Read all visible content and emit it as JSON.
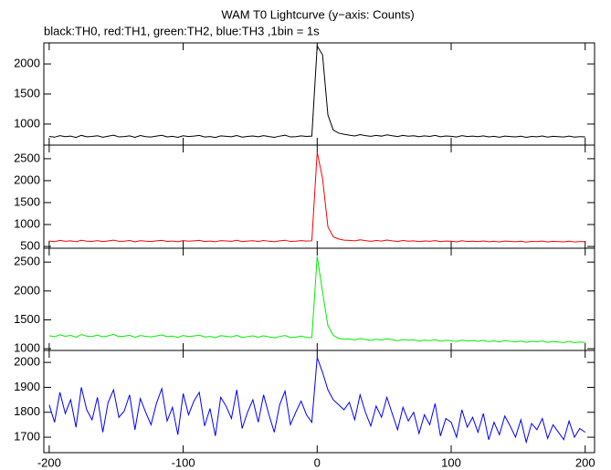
{
  "title": "WAM T0 Lightcurve (y−axis: Counts)",
  "subtitle": "black:TH0, red:TH1, green:TH2, blue:TH3 ,1bin = 1s",
  "chart_data": [
    {
      "type": "line",
      "xlim": [
        -204,
        207
      ],
      "xticks": [
        -200,
        -100,
        0,
        100,
        200
      ],
      "ylim": [
        650,
        2350
      ],
      "yticks": [
        1000,
        1500,
        2000
      ],
      "x": [
        -200,
        -196,
        -192,
        -188,
        -184,
        -180,
        -176,
        -172,
        -168,
        -164,
        -160,
        -156,
        -152,
        -148,
        -144,
        -140,
        -136,
        -132,
        -128,
        -124,
        -120,
        -116,
        -112,
        -108,
        -104,
        -100,
        -96,
        -92,
        -88,
        -84,
        -80,
        -76,
        -72,
        -68,
        -64,
        -60,
        -56,
        -52,
        -48,
        -44,
        -40,
        -36,
        -32,
        -28,
        -24,
        -20,
        -16,
        -12,
        -8,
        -4,
        0,
        4,
        8,
        12,
        16,
        20,
        24,
        28,
        32,
        36,
        40,
        44,
        48,
        52,
        56,
        60,
        64,
        68,
        72,
        76,
        80,
        84,
        88,
        92,
        96,
        100,
        104,
        108,
        112,
        116,
        120,
        124,
        128,
        132,
        136,
        140,
        144,
        148,
        152,
        156,
        160,
        164,
        168,
        172,
        176,
        180,
        184,
        188,
        192,
        196,
        200
      ],
      "series": [
        {
          "color": "#000000",
          "values": [
            795,
            782,
            808,
            790,
            799,
            777,
            812,
            788,
            794,
            805,
            781,
            798,
            815,
            786,
            792,
            803,
            779,
            809,
            791,
            784,
            800,
            813,
            787,
            796,
            780,
            806,
            792,
            799,
            811,
            785,
            793,
            778,
            804,
            797,
            789,
            810,
            783,
            795,
            801,
            788,
            807,
            792,
            780,
            799,
            814,
            786,
            791,
            803,
            795,
            800,
            2300,
            2150,
            1150,
            900,
            850,
            830,
            815,
            802,
            825,
            808,
            796,
            812,
            799,
            820,
            805,
            793,
            811,
            798,
            806,
            790,
            803,
            795,
            812,
            788,
            801,
            797,
            785,
            808,
            792,
            799,
            790,
            804,
            787,
            796,
            781,
            800,
            793,
            786,
            798,
            779,
            794,
            788,
            801,
            783,
            796,
            790,
            785,
            799,
            782,
            791,
            787
          ]
        }
      ]
    },
    {
      "type": "line",
      "xlim": [
        -204,
        207
      ],
      "xticks": [
        -200,
        -100,
        0,
        100,
        200
      ],
      "ylim": [
        460,
        2810
      ],
      "yticks": [
        500,
        1000,
        1500,
        2000,
        2500
      ],
      "x": [
        -200,
        -196,
        -192,
        -188,
        -184,
        -180,
        -176,
        -172,
        -168,
        -164,
        -160,
        -156,
        -152,
        -148,
        -144,
        -140,
        -136,
        -132,
        -128,
        -124,
        -120,
        -116,
        -112,
        -108,
        -104,
        -100,
        -96,
        -92,
        -88,
        -84,
        -80,
        -76,
        -72,
        -68,
        -64,
        -60,
        -56,
        -52,
        -48,
        -44,
        -40,
        -36,
        -32,
        -28,
        -24,
        -20,
        -16,
        -12,
        -8,
        -4,
        0,
        4,
        8,
        12,
        16,
        20,
        24,
        28,
        32,
        36,
        40,
        44,
        48,
        52,
        56,
        60,
        64,
        68,
        72,
        76,
        80,
        84,
        88,
        92,
        96,
        100,
        104,
        108,
        112,
        116,
        120,
        124,
        128,
        132,
        136,
        140,
        144,
        148,
        152,
        156,
        160,
        164,
        168,
        172,
        176,
        180,
        184,
        188,
        192,
        196,
        200
      ],
      "series": [
        {
          "color": "#ff0000",
          "values": [
            625,
            612,
            638,
            619,
            630,
            608,
            642,
            621,
            615,
            633,
            610,
            627,
            645,
            618,
            622,
            636,
            605,
            631,
            620,
            613,
            628,
            640,
            617,
            625,
            609,
            634,
            621,
            629,
            639,
            614,
            623,
            607,
            635,
            626,
            618,
            641,
            611,
            624,
            632,
            616,
            637,
            620,
            609,
            628,
            643,
            615,
            622,
            634,
            624,
            630,
            2650,
            2050,
            950,
            720,
            670,
            645,
            640,
            628,
            652,
            633,
            619,
            637,
            624,
            648,
            630,
            615,
            636,
            621,
            629,
            611,
            627,
            618,
            635,
            610,
            624,
            620,
            606,
            631,
            614,
            622,
            612,
            627,
            608,
            619,
            603,
            623,
            615,
            607,
            621,
            600,
            617,
            610,
            624,
            604,
            618,
            612,
            606,
            621,
            603,
            613,
            609
          ]
        }
      ]
    },
    {
      "type": "line",
      "xlim": [
        -204,
        207
      ],
      "xticks": [
        -200,
        -100,
        0,
        100,
        200
      ],
      "ylim": [
        970,
        2740
      ],
      "yticks": [
        1000,
        1500,
        2000,
        2500
      ],
      "x": [
        -200,
        -196,
        -192,
        -188,
        -184,
        -180,
        -176,
        -172,
        -168,
        -164,
        -160,
        -156,
        -152,
        -148,
        -144,
        -140,
        -136,
        -132,
        -128,
        -124,
        -120,
        -116,
        -112,
        -108,
        -104,
        -100,
        -96,
        -92,
        -88,
        -84,
        -80,
        -76,
        -72,
        -68,
        -64,
        -60,
        -56,
        -52,
        -48,
        -44,
        -40,
        -36,
        -32,
        -28,
        -24,
        -20,
        -16,
        -12,
        -8,
        -4,
        0,
        4,
        8,
        12,
        16,
        20,
        24,
        28,
        32,
        36,
        40,
        44,
        48,
        52,
        56,
        60,
        64,
        68,
        72,
        76,
        80,
        84,
        88,
        92,
        96,
        100,
        104,
        108,
        112,
        116,
        120,
        124,
        128,
        132,
        136,
        140,
        144,
        148,
        152,
        156,
        160,
        164,
        168,
        172,
        176,
        180,
        184,
        188,
        192,
        196,
        200
      ],
      "series": [
        {
          "color": "#00ee00",
          "values": [
            1225,
            1208,
            1240,
            1215,
            1230,
            1200,
            1245,
            1218,
            1212,
            1236,
            1205,
            1222,
            1248,
            1210,
            1216,
            1232,
            1198,
            1228,
            1214,
            1206,
            1221,
            1238,
            1209,
            1218,
            1196,
            1229,
            1211,
            1220,
            1234,
            1203,
            1213,
            1192,
            1226,
            1215,
            1204,
            1231,
            1195,
            1210,
            1222,
            1200,
            1225,
            1205,
            1190,
            1212,
            1228,
            1193,
            1202,
            1218,
            1198,
            1190,
            2600,
            1980,
            1400,
            1230,
            1180,
            1165,
            1170,
            1152,
            1178,
            1160,
            1145,
            1163,
            1150,
            1172,
            1155,
            1138,
            1160,
            1146,
            1153,
            1132,
            1150,
            1140,
            1158,
            1130,
            1145,
            1139,
            1124,
            1150,
            1132,
            1141,
            1128,
            1146,
            1122,
            1135,
            1117,
            1140,
            1129,
            1118,
            1134,
            1110,
            1128,
            1120,
            1133,
            1108,
            1125,
            1116,
            1106,
            1128,
            1104,
            1115,
            1110
          ]
        }
      ]
    },
    {
      "type": "line",
      "xlim": [
        -204,
        207
      ],
      "xticks": [
        -200,
        -100,
        0,
        100,
        200
      ],
      "ylim": [
        1638,
        2048
      ],
      "yticks": [
        1700,
        1800,
        1900,
        2000
      ],
      "x": [
        -200,
        -196,
        -192,
        -188,
        -184,
        -180,
        -176,
        -172,
        -168,
        -164,
        -160,
        -156,
        -152,
        -148,
        -144,
        -140,
        -136,
        -132,
        -128,
        -124,
        -120,
        -116,
        -112,
        -108,
        -104,
        -100,
        -96,
        -92,
        -88,
        -84,
        -80,
        -76,
        -72,
        -68,
        -64,
        -60,
        -56,
        -52,
        -48,
        -44,
        -40,
        -36,
        -32,
        -28,
        -24,
        -20,
        -16,
        -12,
        -8,
        -4,
        0,
        4,
        8,
        12,
        16,
        20,
        24,
        28,
        32,
        36,
        40,
        44,
        48,
        52,
        56,
        60,
        64,
        68,
        72,
        76,
        80,
        84,
        88,
        92,
        96,
        100,
        104,
        108,
        112,
        116,
        120,
        124,
        128,
        132,
        136,
        140,
        144,
        148,
        152,
        156,
        160,
        164,
        168,
        172,
        176,
        180,
        184,
        188,
        192,
        196,
        200
      ],
      "series": [
        {
          "color": "#0000ff",
          "values": [
            1830,
            1760,
            1880,
            1795,
            1850,
            1740,
            1900,
            1810,
            1770,
            1860,
            1720,
            1840,
            1890,
            1780,
            1805,
            1870,
            1730,
            1855,
            1800,
            1750,
            1835,
            1895,
            1765,
            1820,
            1710,
            1875,
            1790,
            1845,
            1880,
            1745,
            1815,
            1705,
            1860,
            1825,
            1775,
            1890,
            1735,
            1800,
            1850,
            1760,
            1870,
            1790,
            1720,
            1830,
            1885,
            1750,
            1800,
            1845,
            1790,
            1760,
            2020,
            1960,
            1890,
            1850,
            1830,
            1810,
            1840,
            1770,
            1870,
            1800,
            1745,
            1825,
            1780,
            1860,
            1795,
            1730,
            1820,
            1765,
            1800,
            1715,
            1790,
            1750,
            1835,
            1705,
            1775,
            1760,
            1700,
            1810,
            1740,
            1780,
            1720,
            1795,
            1690,
            1760,
            1710,
            1785,
            1745,
            1700,
            1770,
            1680,
            1755,
            1730,
            1775,
            1695,
            1750,
            1720,
            1690,
            1765,
            1700,
            1735,
            1720
          ]
        }
      ]
    }
  ]
}
